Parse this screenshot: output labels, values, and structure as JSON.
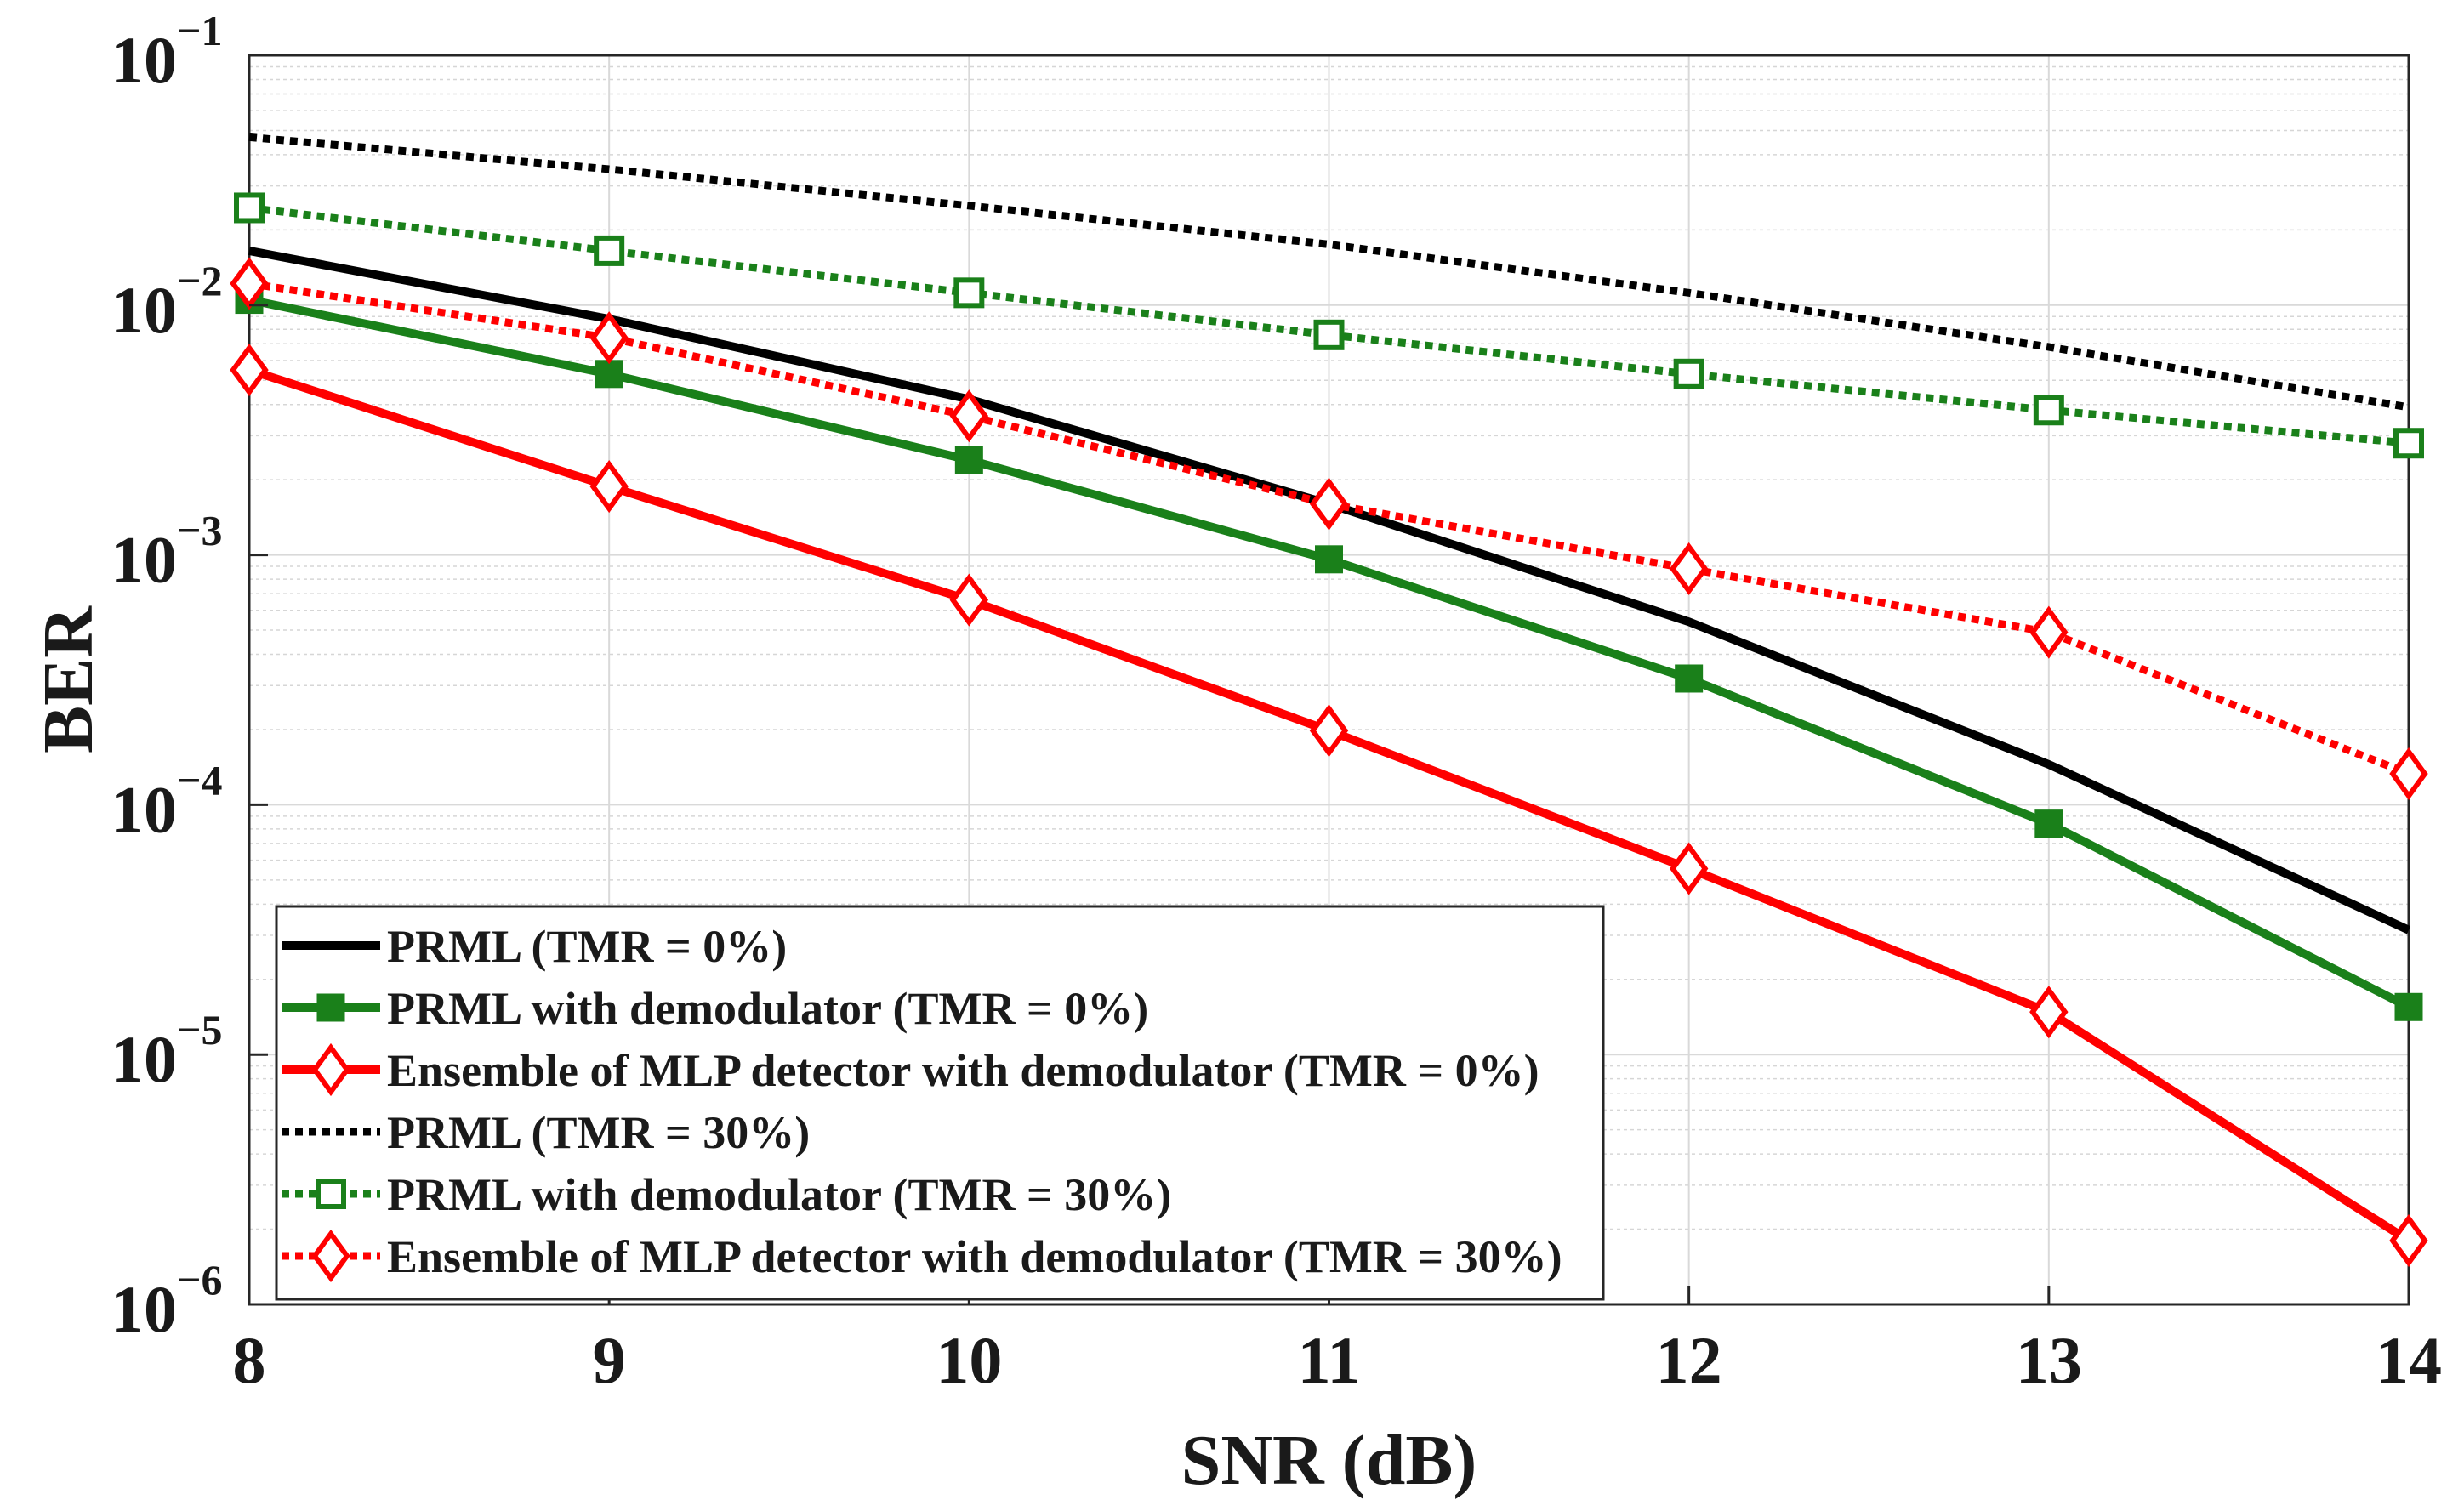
{
  "chart_data": {
    "type": "line",
    "title": "",
    "xlabel": "SNR (dB)",
    "ylabel": "BER",
    "x": [
      8,
      9,
      10,
      11,
      12,
      13,
      14
    ],
    "xlim": [
      8,
      14
    ],
    "ylim": [
      1e-06,
      0.1
    ],
    "yscale": "log",
    "grid": true,
    "xticks": [
      "8",
      "9",
      "10",
      "11",
      "12",
      "13",
      "14"
    ],
    "yticks": [
      {
        "base": "10",
        "exp": "−1"
      },
      {
        "base": "10",
        "exp": "−2"
      },
      {
        "base": "10",
        "exp": "−3"
      },
      {
        "base": "10",
        "exp": "−4"
      },
      {
        "base": "10",
        "exp": "−5"
      },
      {
        "base": "10",
        "exp": "−6"
      }
    ],
    "ytick_values": [
      0.1,
      0.01,
      0.001,
      0.0001,
      1e-05,
      1e-06
    ],
    "legend_location": "lower-left",
    "series": [
      {
        "name": "PRML (TMR = 0%)",
        "color": "#000000",
        "dash": "solid",
        "marker": "none",
        "values": [
          0.0165,
          0.0088,
          0.0042,
          0.0016,
          0.00054,
          0.000145,
          3.15e-05
        ]
      },
      {
        "name": "PRML with demodulator (TMR = 0%)",
        "color": "#1a801a",
        "dash": "solid",
        "marker": "square-filled",
        "values": [
          0.0105,
          0.0053,
          0.0024,
          0.00096,
          0.00032,
          8.4e-05,
          1.55e-05
        ]
      },
      {
        "name": "Ensemble of MLP detector with demodulator (TMR = 0%)",
        "color": "#ff0000",
        "dash": "solid",
        "marker": "diamond-open",
        "values": [
          0.0055,
          0.00188,
          0.00066,
          0.000198,
          5.55e-05,
          1.48e-05,
          1.8e-06
        ]
      },
      {
        "name": "PRML (TMR = 30%)",
        "color": "#000000",
        "dash": "dotted",
        "marker": "none",
        "values": [
          0.047,
          0.035,
          0.025,
          0.0175,
          0.0112,
          0.0068,
          0.0039
        ]
      },
      {
        "name": "PRML with demodulator (TMR = 30%)",
        "color": "#1a801a",
        "dash": "dotted",
        "marker": "square-open",
        "values": [
          0.0245,
          0.0165,
          0.0112,
          0.0076,
          0.0053,
          0.0038,
          0.0028
        ]
      },
      {
        "name": "Ensemble of MLP detector with demodulator (TMR = 30%)",
        "color": "#ff0000",
        "dash": "dotted",
        "marker": "diamond-open",
        "values": [
          0.0122,
          0.0074,
          0.0036,
          0.0016,
          0.00088,
          0.00049,
          0.000133
        ]
      }
    ]
  }
}
